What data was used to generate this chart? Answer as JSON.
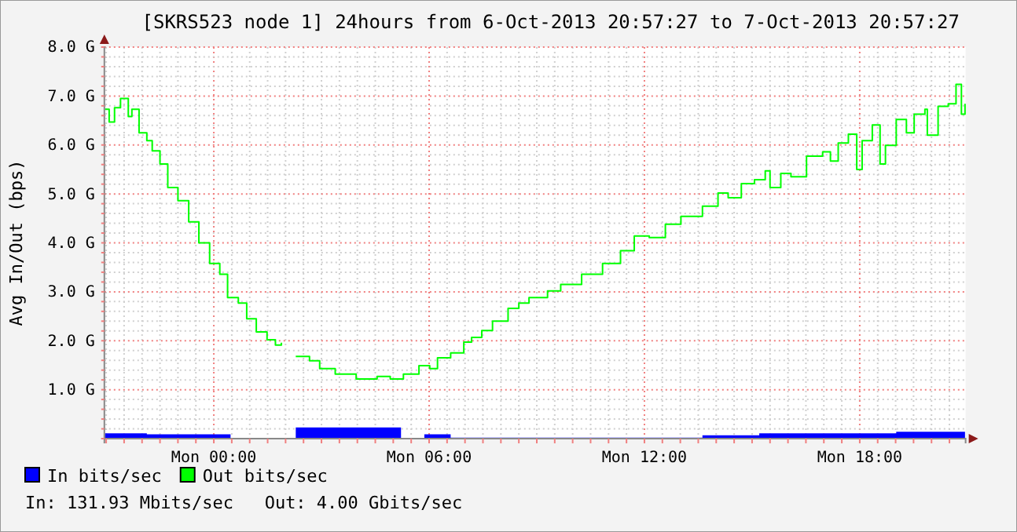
{
  "chart_data": {
    "type": "step",
    "title": "[SKRS523 node 1] 24hours from 6-Oct-2013 20:57:27 to 7-Oct-2013 20:57:27",
    "ylabel": "Avg In/Out (bps)",
    "xlim": [
      "2013-10-06T20:57",
      "2013-10-07T20:57"
    ],
    "xticks": [
      {
        "value": "2013-10-06T21:00",
        "label": null
      },
      {
        "value": "2013-10-06T21:30",
        "label": null
      },
      {
        "value": "2013-10-06T22:00",
        "label": null
      },
      {
        "value": "2013-10-06T22:30",
        "label": null
      },
      {
        "value": "2013-10-06T23:00",
        "label": null
      },
      {
        "value": "2013-10-06T23:30",
        "label": null
      },
      {
        "value": "2013-10-07T00:00",
        "label": "Mon 00:00"
      },
      {
        "value": "2013-10-07T00:30",
        "label": null
      },
      {
        "value": "2013-10-07T01:00",
        "label": null
      },
      {
        "value": "2013-10-07T01:30",
        "label": null
      },
      {
        "value": "2013-10-07T02:00",
        "label": null
      },
      {
        "value": "2013-10-07T02:30",
        "label": null
      },
      {
        "value": "2013-10-07T03:00",
        "label": null
      },
      {
        "value": "2013-10-07T03:30",
        "label": null
      },
      {
        "value": "2013-10-07T04:00",
        "label": null
      },
      {
        "value": "2013-10-07T04:30",
        "label": null
      },
      {
        "value": "2013-10-07T05:00",
        "label": null
      },
      {
        "value": "2013-10-07T05:30",
        "label": null
      },
      {
        "value": "2013-10-07T06:00",
        "label": "Mon 06:00"
      },
      {
        "value": "2013-10-07T06:30",
        "label": null
      },
      {
        "value": "2013-10-07T07:00",
        "label": null
      },
      {
        "value": "2013-10-07T07:30",
        "label": null
      },
      {
        "value": "2013-10-07T08:00",
        "label": null
      },
      {
        "value": "2013-10-07T08:30",
        "label": null
      },
      {
        "value": "2013-10-07T09:00",
        "label": null
      },
      {
        "value": "2013-10-07T09:30",
        "label": null
      },
      {
        "value": "2013-10-07T10:00",
        "label": null
      },
      {
        "value": "2013-10-07T10:30",
        "label": null
      },
      {
        "value": "2013-10-07T11:00",
        "label": null
      },
      {
        "value": "2013-10-07T11:30",
        "label": null
      },
      {
        "value": "2013-10-07T12:00",
        "label": "Mon 12:00"
      },
      {
        "value": "2013-10-07T12:30",
        "label": null
      },
      {
        "value": "2013-10-07T13:00",
        "label": null
      },
      {
        "value": "2013-10-07T13:30",
        "label": null
      },
      {
        "value": "2013-10-07T14:00",
        "label": null
      },
      {
        "value": "2013-10-07T14:30",
        "label": null
      },
      {
        "value": "2013-10-07T15:00",
        "label": null
      },
      {
        "value": "2013-10-07T15:30",
        "label": null
      },
      {
        "value": "2013-10-07T16:00",
        "label": null
      },
      {
        "value": "2013-10-07T16:30",
        "label": null
      },
      {
        "value": "2013-10-07T17:00",
        "label": null
      },
      {
        "value": "2013-10-07T17:30",
        "label": null
      },
      {
        "value": "2013-10-07T18:00",
        "label": "Mon 18:00"
      },
      {
        "value": "2013-10-07T18:30",
        "label": null
      },
      {
        "value": "2013-10-07T19:00",
        "label": null
      },
      {
        "value": "2013-10-07T19:30",
        "label": null
      },
      {
        "value": "2013-10-07T20:00",
        "label": null
      },
      {
        "value": "2013-10-07T20:30",
        "label": null
      }
    ],
    "ylim": [
      0,
      8
    ],
    "yticks": [
      {
        "value": 0,
        "label": null
      },
      {
        "value": 0.2,
        "label": null
      },
      {
        "value": 0.4,
        "label": null
      },
      {
        "value": 0.6,
        "label": null
      },
      {
        "value": 0.8,
        "label": null
      },
      {
        "value": 1,
        "label": "1.0 G"
      },
      {
        "value": 1.2,
        "label": null
      },
      {
        "value": 1.4,
        "label": null
      },
      {
        "value": 1.6,
        "label": null
      },
      {
        "value": 1.8,
        "label": null
      },
      {
        "value": 2,
        "label": "2.0 G"
      },
      {
        "value": 2.2,
        "label": null
      },
      {
        "value": 2.4,
        "label": null
      },
      {
        "value": 2.6,
        "label": null
      },
      {
        "value": 2.8,
        "label": null
      },
      {
        "value": 3,
        "label": "3.0 G"
      },
      {
        "value": 3.2,
        "label": null
      },
      {
        "value": 3.4,
        "label": null
      },
      {
        "value": 3.6,
        "label": null
      },
      {
        "value": 3.8,
        "label": null
      },
      {
        "value": 4,
        "label": "4.0 G"
      },
      {
        "value": 4.2,
        "label": null
      },
      {
        "value": 4.4,
        "label": null
      },
      {
        "value": 4.6,
        "label": null
      },
      {
        "value": 4.8,
        "label": null
      },
      {
        "value": 5,
        "label": "5.0 G"
      },
      {
        "value": 5.2,
        "label": null
      },
      {
        "value": 5.4,
        "label": null
      },
      {
        "value": 5.6,
        "label": null
      },
      {
        "value": 5.8,
        "label": null
      },
      {
        "value": 6,
        "label": "6.0 G"
      },
      {
        "value": 6.2,
        "label": null
      },
      {
        "value": 6.4,
        "label": null
      },
      {
        "value": 6.6,
        "label": null
      },
      {
        "value": 6.8,
        "label": null
      },
      {
        "value": 7,
        "label": "7.0 G"
      },
      {
        "value": 7.2,
        "label": null
      },
      {
        "value": 7.4,
        "label": null
      },
      {
        "value": 7.6,
        "label": null
      },
      {
        "value": 7.8,
        "label": null
      },
      {
        "value": 8,
        "label": "8.0 G"
      }
    ],
    "grid": true,
    "legend": "bottom left",
    "annotations": [
      "In: 131.93 Mbits/sec   Out: 4.00 Gbits/sec"
    ],
    "series": [
      {
        "name": "In bits/sec",
        "type": "area",
        "color": "#0000ff",
        "x": [
          "2013-10-06T20:58",
          "2013-10-06T22:08",
          "2013-10-07T00:28",
          "2013-10-07T01:56",
          "2013-10-07T02:17",
          "2013-10-07T05:13",
          "2013-10-07T05:52",
          "2013-10-07T06:36",
          "2013-10-07T13:37",
          "2013-10-07T15:12",
          "2013-10-07T19:01",
          "2013-10-07T20:56"
        ],
        "values": [
          0.11,
          0.09,
          0.17,
          null,
          0.23,
          0.01,
          0.09,
          0.02,
          0.07,
          0.11,
          0.14,
          0.14
        ]
      },
      {
        "name": "Out bits/sec",
        "color": "#00ff00",
        "x": [
          "2013-10-06T20:58",
          "2013-10-06T21:05",
          "2013-10-06T21:14",
          "2013-10-06T21:24",
          "2013-10-06T21:37",
          "2013-10-06T21:43",
          "2013-10-06T21:55",
          "2013-10-06T22:08",
          "2013-10-06T22:17",
          "2013-10-06T22:30",
          "2013-10-06T22:43",
          "2013-10-06T23:00",
          "2013-10-06T23:18",
          "2013-10-06T23:35",
          "2013-10-06T23:53",
          "2013-10-07T00:10",
          "2013-10-07T00:23",
          "2013-10-07T00:41",
          "2013-10-07T00:55",
          "2013-10-07T01:11",
          "2013-10-07T01:29",
          "2013-10-07T01:43",
          "2013-10-07T01:53",
          "2013-10-07T02:00",
          "2013-10-07T02:17",
          "2013-10-07T02:40",
          "2013-10-07T02:57",
          "2013-10-07T03:23",
          "2013-10-07T03:58",
          "2013-10-07T04:33",
          "2013-10-07T04:55",
          "2013-10-07T05:17",
          "2013-10-07T05:43",
          "2013-10-07T06:01",
          "2013-10-07T06:14",
          "2013-10-07T06:36",
          "2013-10-07T06:58",
          "2013-10-07T07:11",
          "2013-10-07T07:28",
          "2013-10-07T07:46",
          "2013-10-07T08:12",
          "2013-10-07T08:30",
          "2013-10-07T08:47",
          "2013-10-07T09:18",
          "2013-10-07T09:40",
          "2013-10-07T10:15",
          "2013-10-07T10:50",
          "2013-10-07T11:20",
          "2013-10-07T11:43",
          "2013-10-07T12:08",
          "2013-10-07T12:35",
          "2013-10-07T13:01",
          "2013-10-07T13:37",
          "2013-10-07T14:03",
          "2013-10-07T14:20",
          "2013-10-07T14:42",
          "2013-10-07T15:04",
          "2013-10-07T15:22",
          "2013-10-07T15:30",
          "2013-10-07T15:48",
          "2013-10-07T16:05",
          "2013-10-07T16:31",
          "2013-10-07T16:58",
          "2013-10-07T17:11",
          "2013-10-07T17:24",
          "2013-10-07T17:41",
          "2013-10-07T17:55",
          "2013-10-07T18:04",
          "2013-10-07T18:21",
          "2013-10-07T18:34",
          "2013-10-07T18:43",
          "2013-10-07T19:01",
          "2013-10-07T19:18",
          "2013-10-07T19:31",
          "2013-10-07T19:49",
          "2013-10-07T19:53",
          "2013-10-07T20:11",
          "2013-10-07T20:28",
          "2013-10-07T20:41",
          "2013-10-07T20:50",
          "2013-10-07T20:56"
        ],
        "values": [
          6.73,
          6.47,
          6.76,
          6.95,
          6.58,
          6.73,
          6.25,
          6.09,
          5.88,
          5.61,
          5.13,
          4.86,
          4.43,
          4.0,
          3.58,
          3.36,
          2.88,
          2.77,
          2.45,
          2.18,
          2.02,
          1.91,
          1.96,
          null,
          1.68,
          1.59,
          1.43,
          1.32,
          1.22,
          1.27,
          1.22,
          1.32,
          1.49,
          1.43,
          1.65,
          1.75,
          1.97,
          2.07,
          2.21,
          2.4,
          2.66,
          2.77,
          2.88,
          3.02,
          3.15,
          3.36,
          3.58,
          3.84,
          4.14,
          4.11,
          4.38,
          4.54,
          4.75,
          5.02,
          4.92,
          5.21,
          5.29,
          5.47,
          5.13,
          5.42,
          5.35,
          5.77,
          5.86,
          5.67,
          6.04,
          6.22,
          5.5,
          6.09,
          6.41,
          5.61,
          5.99,
          6.52,
          6.25,
          6.63,
          6.73,
          6.2,
          6.79,
          6.84,
          7.24,
          6.63,
          6.84
        ]
      }
    ]
  }
}
